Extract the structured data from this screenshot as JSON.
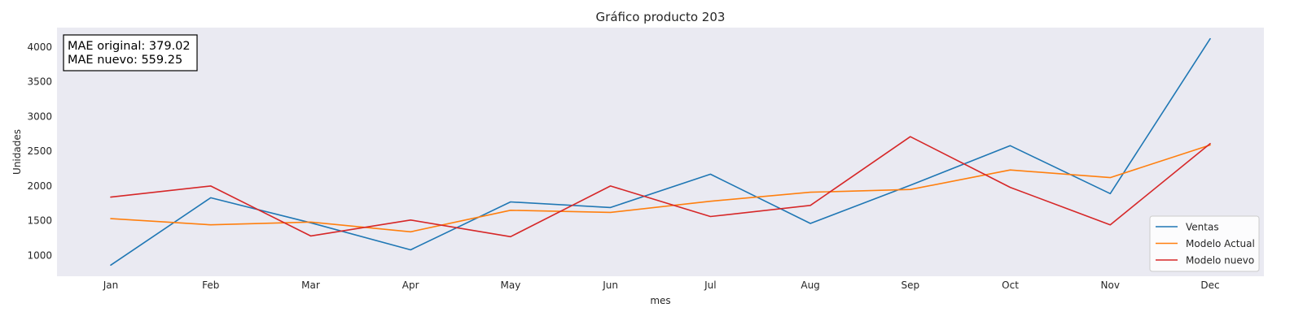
{
  "chart_data": {
    "type": "line",
    "title": "Gráfico producto 203",
    "xlabel": "mes",
    "ylabel": "Unidades",
    "categories": [
      "Jan",
      "Feb",
      "Mar",
      "Apr",
      "May",
      "Jun",
      "Jul",
      "Aug",
      "Sep",
      "Oct",
      "Nov",
      "Dec"
    ],
    "yticks": [
      1000,
      1500,
      2000,
      2500,
      3000,
      3500,
      4000
    ],
    "ylim": [
      700,
      4280
    ],
    "grid": false,
    "legend_position": "lower-right",
    "annotation": {
      "lines": [
        "MAE original: 379.02",
        "MAE nuevo: 559.25"
      ],
      "position": "top-left"
    },
    "plot_background": "#eaeaf2",
    "series": [
      {
        "name": "Ventas",
        "color": "#1f77b4",
        "values": [
          860,
          1830,
          1470,
          1080,
          1770,
          1690,
          2170,
          1460,
          2010,
          2580,
          1890,
          4120
        ]
      },
      {
        "name": "Modelo Actual",
        "color": "#ff7f0e",
        "values": [
          1530,
          1440,
          1480,
          1340,
          1650,
          1620,
          1780,
          1910,
          1950,
          2230,
          2120,
          2590
        ]
      },
      {
        "name": "Modelo nuevo",
        "color": "#d62728",
        "values": [
          1840,
          2000,
          1280,
          1510,
          1270,
          2000,
          1560,
          1720,
          2710,
          1980,
          1440,
          2610
        ]
      }
    ]
  }
}
